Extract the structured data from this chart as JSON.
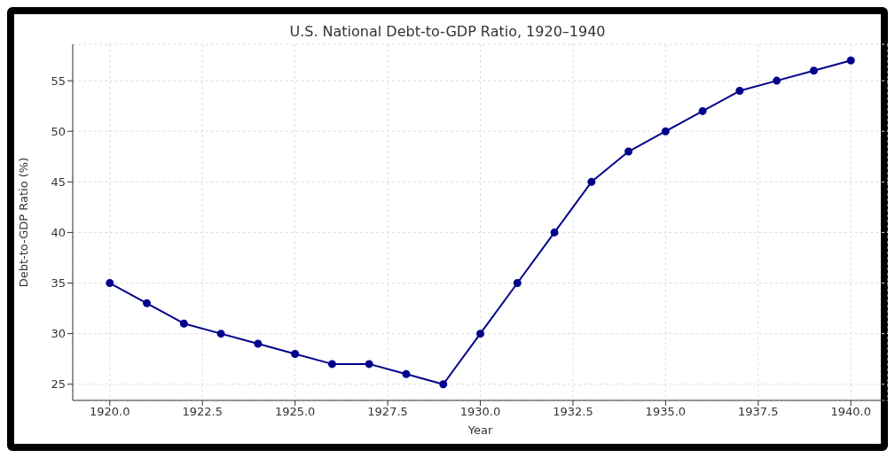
{
  "chart_data": {
    "type": "line",
    "title": "U.S. National Debt-to-GDP Ratio, 1920–1940",
    "xlabel": "Year",
    "ylabel": "Debt-to-GDP Ratio (%)",
    "x": [
      1920,
      1921,
      1922,
      1923,
      1924,
      1925,
      1926,
      1927,
      1928,
      1929,
      1930,
      1931,
      1932,
      1933,
      1934,
      1935,
      1936,
      1937,
      1938,
      1939,
      1940
    ],
    "series": [
      {
        "color": "#00008b",
        "values": [
          35,
          33,
          31,
          30,
          29,
          28,
          27,
          27,
          26,
          25,
          30,
          35,
          40,
          45,
          48,
          50,
          52,
          54,
          55,
          56,
          57
        ]
      }
    ],
    "xlim": [
      1919,
      1941
    ],
    "xticks": [
      {
        "value": 1920,
        "label": "1920.0"
      },
      {
        "value": 1922.5,
        "label": "1922.5"
      },
      {
        "value": 1925,
        "label": "1925.0"
      },
      {
        "value": 1927.5,
        "label": "1927.5"
      },
      {
        "value": 1930,
        "label": "1930.0"
      },
      {
        "value": 1932.5,
        "label": "1932.5"
      },
      {
        "value": 1935,
        "label": "1935.0"
      },
      {
        "value": 1937.5,
        "label": "1937.5"
      },
      {
        "value": 1940,
        "label": "1940.0"
      }
    ],
    "ylim": [
      23.4,
      58.6
    ],
    "yticks": [
      25,
      30,
      35,
      40,
      45,
      50,
      55
    ],
    "grid": true,
    "marker": "circle",
    "line_style": "solid"
  }
}
